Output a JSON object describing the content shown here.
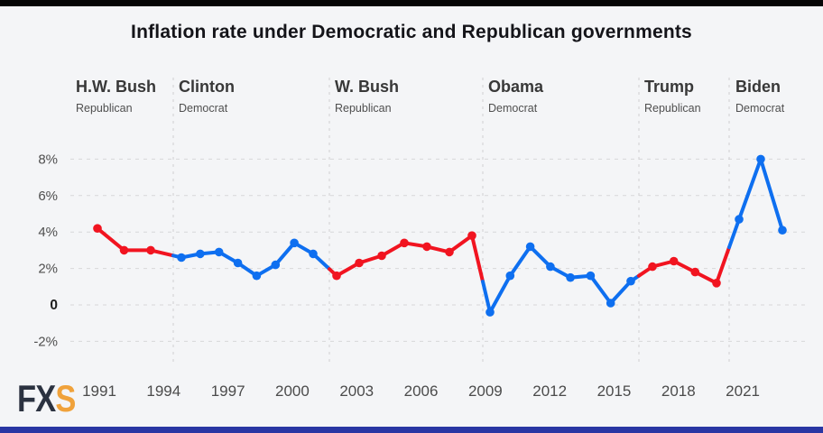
{
  "logo": {
    "fx": "FX",
    "s": "S"
  },
  "chart_data": {
    "type": "line",
    "title": "Inflation rate under Democratic and Republican governments",
    "x": [
      1991,
      1992,
      1993,
      1994,
      1995,
      1996,
      1997,
      1998,
      1999,
      2000,
      2001,
      2002,
      2003,
      2004,
      2005,
      2006,
      2007,
      2008,
      2009,
      2010,
      2011,
      2012,
      2013,
      2014,
      2015,
      2016,
      2017,
      2018,
      2019,
      2020,
      2021,
      2022,
      2023
    ],
    "values": [
      4.2,
      3.0,
      3.0,
      2.6,
      2.8,
      2.9,
      2.3,
      1.6,
      2.2,
      3.4,
      2.8,
      1.6,
      2.3,
      2.7,
      3.4,
      3.2,
      2.9,
      3.8,
      -0.4,
      1.6,
      3.2,
      2.1,
      1.5,
      1.6,
      0.1,
      1.3,
      2.1,
      2.4,
      1.8,
      1.2,
      4.7,
      8.0,
      4.1
    ],
    "ylabel": "",
    "xlabel": "",
    "yticks": [
      {
        "label": "8%",
        "value": 8
      },
      {
        "label": "6%",
        "value": 6
      },
      {
        "label": "4%",
        "value": 4
      },
      {
        "label": "2%",
        "value": 2
      },
      {
        "label": "0",
        "value": 0
      },
      {
        "label": "-2%",
        "value": -2
      }
    ],
    "xticks": [
      1991,
      1994,
      1997,
      2000,
      2003,
      2006,
      2009,
      2012,
      2015,
      2018,
      2021
    ],
    "ylim": [
      -3.2,
      9.2
    ],
    "grid": "dashed-horizontal",
    "legend_position": "none",
    "colors": {
      "republican": "#f11420",
      "democrat": "#0e6ff0"
    },
    "eras": [
      {
        "president": "H.W. Bush",
        "party": "Republican",
        "start_year": 1991,
        "end_year": 1993,
        "color": "#f11420"
      },
      {
        "president": "Clinton",
        "party": "Democrat",
        "start_year": 1994,
        "end_year": 2001,
        "color": "#0e6ff0"
      },
      {
        "president": "W. Bush",
        "party": "Republican",
        "start_year": 2002,
        "end_year": 2008,
        "color": "#f11420"
      },
      {
        "president": "Obama",
        "party": "Democrat",
        "start_year": 2009,
        "end_year": 2016,
        "color": "#0e6ff0"
      },
      {
        "president": "Trump",
        "party": "Republican",
        "start_year": 2017,
        "end_year": 2020,
        "color": "#f11420"
      },
      {
        "president": "Biden",
        "party": "Democrat",
        "start_year": 2021,
        "end_year": 2023,
        "color": "#0e6ff0"
      }
    ]
  }
}
